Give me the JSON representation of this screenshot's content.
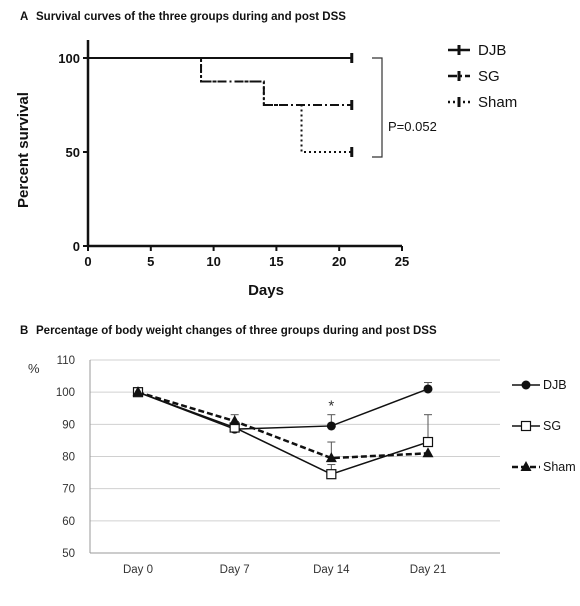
{
  "chart_data": [
    {
      "type": "line",
      "panel_letter": "A",
      "title": "Survival curves of the three groups during and post DSS",
      "xlabel": "Days",
      "ylabel": "Percent survival",
      "xlim": [
        0,
        25
      ],
      "ylim": [
        0,
        100
      ],
      "x_ticks": [
        "0",
        "5",
        "10",
        "15",
        "20",
        "25"
      ],
      "y_ticks": [
        "0",
        "50",
        "100"
      ],
      "step": true,
      "series": [
        {
          "name": "DJB",
          "style": "solid",
          "x": [
            0,
            21
          ],
          "y": [
            100,
            100
          ]
        },
        {
          "name": "SG",
          "style": "dashdot",
          "x": [
            0,
            9,
            14,
            21
          ],
          "y": [
            100,
            87.5,
            75,
            75
          ]
        },
        {
          "name": "Sham",
          "style": "dotted",
          "x": [
            0,
            9,
            14,
            17,
            21
          ],
          "y": [
            100,
            87.5,
            75,
            50,
            50
          ]
        }
      ],
      "annotation": "P=0.052",
      "legend_position": "right"
    },
    {
      "type": "line",
      "panel_letter": "B",
      "title": "Percentage of body weight changes of three groups during and post DSS",
      "ylabel": "%",
      "categories": [
        "Day 0",
        "Day 7",
        "Day 14",
        "Day 21"
      ],
      "ylim": [
        50,
        110
      ],
      "y_ticks": [
        "50",
        "60",
        "70",
        "80",
        "90",
        "100",
        "110"
      ],
      "grid": true,
      "series": [
        {
          "name": "DJB",
          "marker": "filled-circle",
          "style": "solid",
          "values": [
            100,
            88.5,
            89.5,
            101
          ],
          "errors": [
            0,
            1.5,
            3.5,
            2
          ]
        },
        {
          "name": "SG",
          "marker": "open-square",
          "style": "solid",
          "values": [
            100,
            89,
            74.5,
            84.5
          ],
          "errors": [
            0,
            1.5,
            3,
            8.5
          ]
        },
        {
          "name": "Sham",
          "marker": "filled-triangle",
          "style": "dashed",
          "values": [
            100,
            91,
            79.5,
            81
          ],
          "errors": [
            0,
            2,
            5,
            0
          ]
        }
      ],
      "annotations": [
        {
          "category": "Day 14",
          "text": "*"
        }
      ],
      "legend_position": "right"
    }
  ]
}
